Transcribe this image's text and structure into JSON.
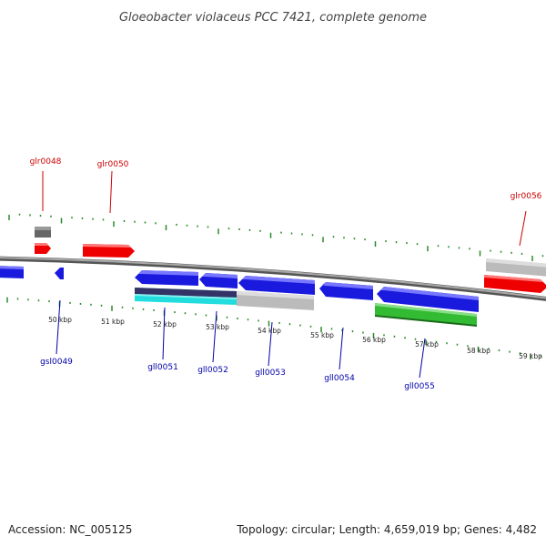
{
  "title": "Gloeobacter violaceus PCC 7421, complete genome",
  "footer": {
    "accession": "Accession: NC_005125",
    "summary": "Topology: circular; Length: 4,659,019 bp; Genes: 4,482"
  },
  "colors": {
    "forward_label": "#cc0000",
    "reverse_label": "#0000aa",
    "tick": "#2a8a2a",
    "backbone": "#888888",
    "gene_forward": "#ee0000",
    "gene_reverse": "#1a1adf",
    "gene_grey": "#bbbbbb",
    "gene_darkgrey": "#666666",
    "gene_green": "#33bb33",
    "gene_cyan": "#22dddd",
    "gene_navy": "#333366"
  },
  "scale_labels": [
    "50 kbp",
    "51 kbp",
    "52 kbp",
    "53 kbp",
    "54 kbp",
    "55 kbp",
    "56 kbp",
    "57 kbp",
    "58 kbp",
    "59 kbp"
  ],
  "genes_forward": [
    {
      "name": "glr0048"
    },
    {
      "name": "glr0050"
    },
    {
      "name": "glr0056"
    }
  ],
  "genes_reverse": [
    {
      "name": "gsl0049"
    },
    {
      "name": "gll0051"
    },
    {
      "name": "gll0052"
    },
    {
      "name": "gll0053"
    },
    {
      "name": "gll0054"
    },
    {
      "name": "gll0055"
    }
  ]
}
